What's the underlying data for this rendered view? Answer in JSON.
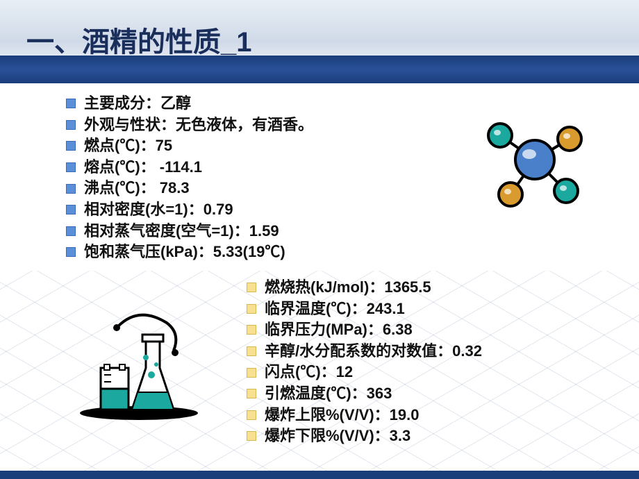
{
  "title": "一、酒精的性质_1",
  "colors": {
    "title_color": "#1a2e5c",
    "blue_band": "#1a3e7a",
    "bullet_blue": "#5b8fd9",
    "bullet_yellow": "#f8e090",
    "molecule_center": "#4a7fc9",
    "molecule_outer": "#d99a2e",
    "molecule_teal": "#1ba89e"
  },
  "list1": [
    "主要成分：乙醇",
    "外观与性状：无色液体，有酒香。",
    "燃点(℃)：75",
    "熔点(℃)： -114.1",
    "沸点(℃)： 78.3",
    "相对密度(水=1)：0.79",
    "相对蒸气密度(空气=1)：1.59",
    "饱和蒸气压(kPa)：5.33(19℃)"
  ],
  "list2": [
    "燃烧热(kJ/mol)：1365.5",
    "临界温度(℃)：243.1",
    "临界压力(MPa)：6.38",
    "辛醇/水分配系数的对数值：0.32",
    "闪点(℃)：12",
    "引燃温度(℃)：363",
    "爆炸上限%(V/V)：19.0",
    "爆炸下限%(V/V)：3.3"
  ]
}
